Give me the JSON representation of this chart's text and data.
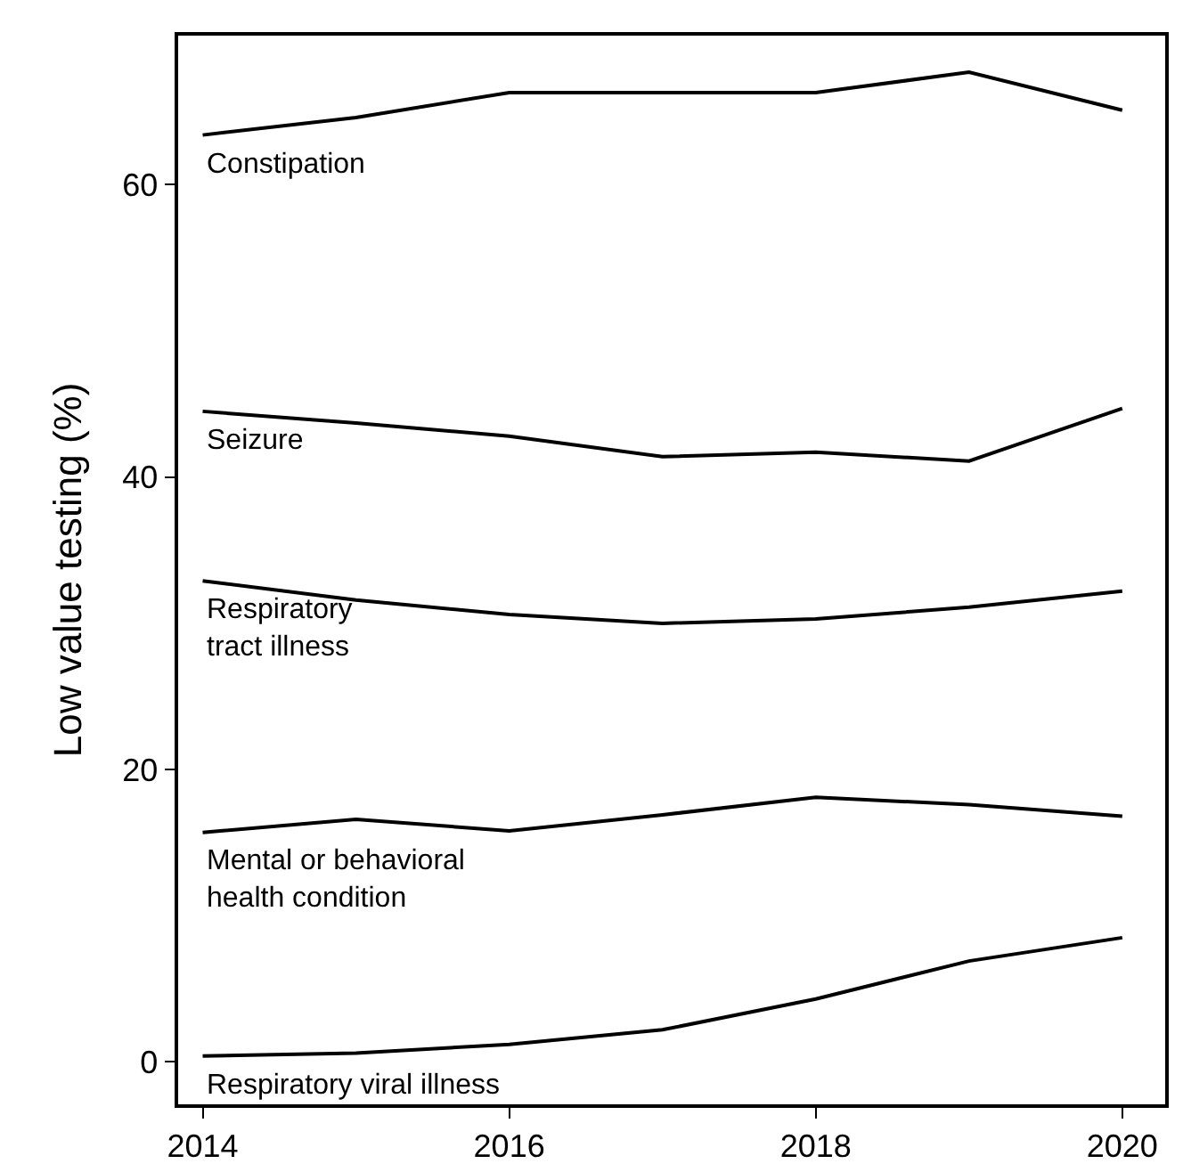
{
  "chart_data": {
    "type": "line",
    "ylabel": "Low value testing (%)",
    "x": [
      2014,
      2015,
      2016,
      2017,
      2018,
      2019,
      2020
    ],
    "xlim": [
      2013.84,
      2020.28
    ],
    "xticks": [
      2014,
      2016,
      2018,
      2020
    ],
    "ylim": [
      -2.9,
      70.2
    ],
    "yticks": [
      0,
      20,
      40,
      60
    ],
    "grid": false,
    "legend": false,
    "marker": "none",
    "line_style": "solid",
    "series": [
      {
        "name": "Constipation",
        "color": "#000000",
        "values": [
          63.4,
          64.6,
          66.3,
          66.3,
          66.3,
          67.7,
          65.1
        ]
      },
      {
        "name": "Seizure",
        "color": "#000000",
        "values": [
          44.5,
          43.7,
          42.8,
          41.4,
          41.7,
          41.1,
          44.7
        ]
      },
      {
        "name": "Respiratory\ntract illness",
        "color": "#000000",
        "values": [
          32.9,
          31.6,
          30.6,
          30.0,
          30.3,
          31.1,
          32.2
        ]
      },
      {
        "name": "Mental or behavioral\nhealth condition",
        "color": "#000000",
        "values": [
          15.7,
          16.6,
          15.8,
          16.9,
          18.1,
          17.6,
          16.8
        ]
      },
      {
        "name": "Respiratory viral illness",
        "color": "#000000",
        "values": [
          0.4,
          0.6,
          1.2,
          2.2,
          4.3,
          6.9,
          8.5
        ]
      }
    ]
  }
}
